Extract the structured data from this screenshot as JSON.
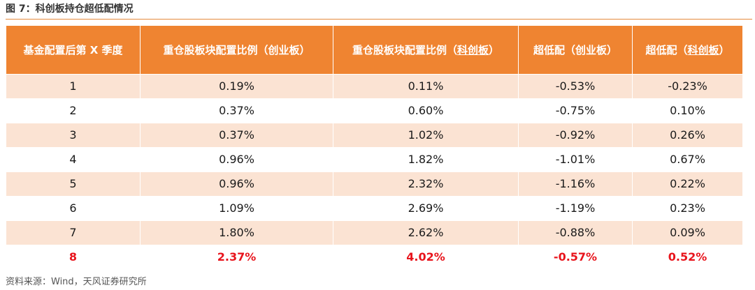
{
  "figure": {
    "title": "图 7：科创板持仓超低配情况"
  },
  "table": {
    "headers": [
      {
        "pre": "基金配置后第 X 季度",
        "ul": "",
        "post": ""
      },
      {
        "pre": "重仓股板块配置比例（创业板）",
        "ul": "",
        "post": ""
      },
      {
        "pre": "重仓股板块配置比例（",
        "ul": "科创板",
        "post": "）"
      },
      {
        "pre": "超低配（创业板）",
        "ul": "",
        "post": ""
      },
      {
        "pre": "超低配（",
        "ul": "科创板",
        "post": "）"
      }
    ],
    "rows": [
      [
        "1",
        "0.19%",
        "0.11%",
        "-0.53%",
        "-0.23%"
      ],
      [
        "2",
        "0.37%",
        "0.60%",
        "-0.75%",
        "0.10%"
      ],
      [
        "3",
        "0.37%",
        "1.02%",
        "-0.92%",
        "0.26%"
      ],
      [
        "4",
        "0.96%",
        "1.82%",
        "-1.01%",
        "0.67%"
      ],
      [
        "5",
        "0.96%",
        "2.32%",
        "-1.16%",
        "0.22%"
      ],
      [
        "6",
        "1.09%",
        "2.69%",
        "-1.19%",
        "0.23%"
      ],
      [
        "7",
        "1.80%",
        "2.62%",
        "-0.88%",
        "0.09%"
      ],
      [
        "8",
        "2.37%",
        "4.02%",
        "-0.57%",
        "0.52%"
      ]
    ],
    "highlight_row_index": 7,
    "colors": {
      "header_bg": "#ef8431",
      "band_bg": "#fbe3d3",
      "highlight_text": "#e8141c",
      "title_rule": "#e58a3c"
    }
  },
  "source": "资料来源：Wind，天风证券研究所"
}
